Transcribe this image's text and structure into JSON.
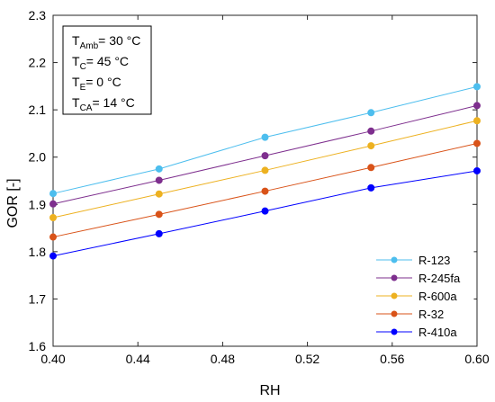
{
  "chart_data": {
    "type": "line",
    "title": "",
    "xlabel": "RH",
    "ylabel": "GOR [-]",
    "x": [
      0.4,
      0.45,
      0.5,
      0.55,
      0.6
    ],
    "xlim": [
      0.4,
      0.6
    ],
    "ylim": [
      1.6,
      2.3
    ],
    "x_ticks": [
      "0.40",
      "0.44",
      "0.48",
      "0.52",
      "0.56",
      "0.60"
    ],
    "y_ticks": [
      "1.6",
      "1.7",
      "1.8",
      "1.9",
      "2.0",
      "2.1",
      "2.2",
      "2.3"
    ],
    "grid": false,
    "legend_position": "bottom-right",
    "series": [
      {
        "name": "R-123",
        "color": "#4dbeee",
        "values": [
          1.923,
          1.975,
          2.042,
          2.094,
          2.149
        ]
      },
      {
        "name": "R-245fa",
        "color": "#7e2f8e",
        "values": [
          1.901,
          1.951,
          2.003,
          2.055,
          2.109
        ]
      },
      {
        "name": "R-600a",
        "color": "#edb120",
        "values": [
          1.872,
          1.922,
          1.972,
          2.024,
          2.077
        ]
      },
      {
        "name": "R-32",
        "color": "#d95319",
        "values": [
          1.831,
          1.879,
          1.928,
          1.978,
          2.029
        ]
      },
      {
        "name": "R-410a",
        "color": "#0000ff",
        "values": [
          1.791,
          1.838,
          1.886,
          1.935,
          1.971
        ]
      }
    ],
    "annotation": [
      {
        "main": "T",
        "sub": "Amb",
        "rest": "= 30 °C"
      },
      {
        "main": "T",
        "sub": "C",
        "rest": "= 45 °C"
      },
      {
        "main": "T",
        "sub": "E",
        "rest": "= 0 °C"
      },
      {
        "main": "T",
        "sub": "CA",
        "rest": "= 14 °C"
      }
    ]
  }
}
